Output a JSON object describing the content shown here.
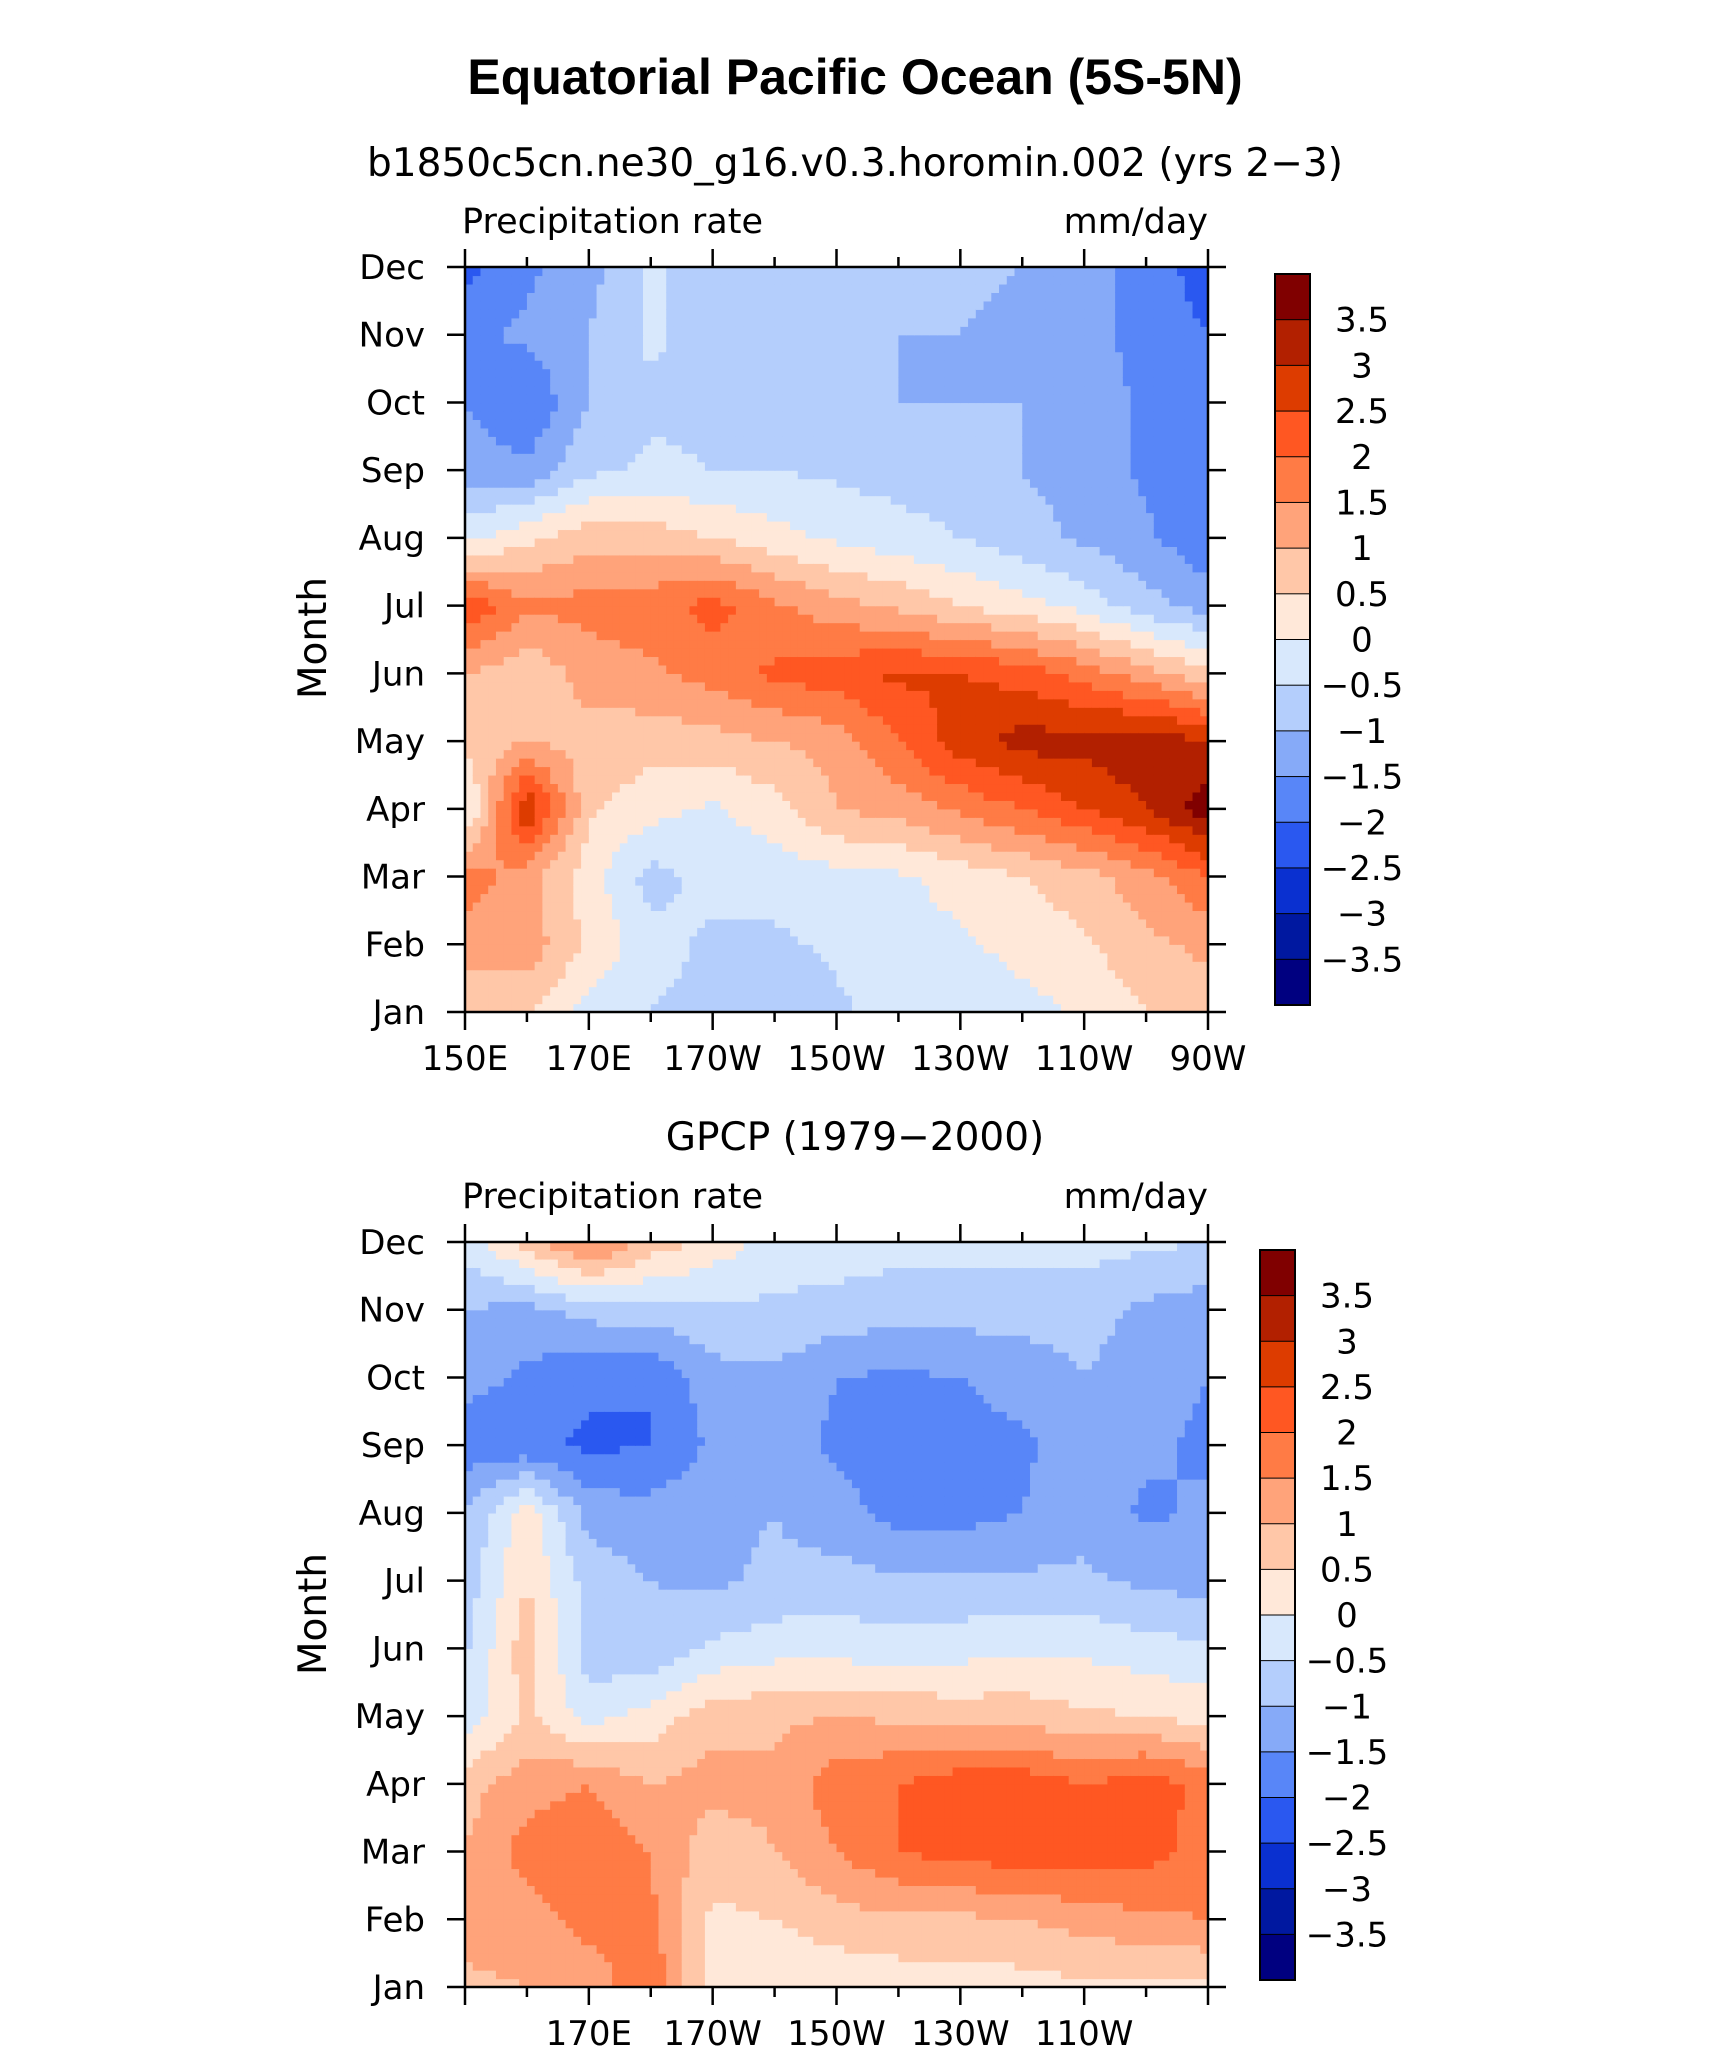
{
  "main_title": "Equatorial Pacific Ocean (5S-5N)",
  "colorbar": {
    "levels": [
      "3.5",
      "3",
      "2.5",
      "2",
      "1.5",
      "1",
      "0.5",
      "0",
      "−0.5",
      "−1",
      "−1.5",
      "−2",
      "−2.5",
      "−3",
      "−3.5"
    ],
    "colors": [
      "#800000",
      "#b22000",
      "#dd3c00",
      "#ff5722",
      "#ff7b45",
      "#ffa37a",
      "#ffc7a8",
      "#ffe8d9",
      "#d8e8fc",
      "#b4cefc",
      "#86aaf8",
      "#5886f8",
      "#2a58f0",
      "#0a30d0",
      "#0018a0",
      "#000080"
    ]
  },
  "chart_data": [
    {
      "type": "heatmap",
      "title": "b1850c5cn.ne30_g16.v0.3.horomin.002 (yrs 2−3)",
      "left_string": "Precipitation rate",
      "right_string": "mm/day",
      "ylabel": "Month",
      "xticklabels": [
        "150E",
        "170E",
        "170W",
        "150W",
        "130W",
        "110W",
        "90W"
      ],
      "yticklabels": [
        "Jan",
        "Feb",
        "Mar",
        "Apr",
        "May",
        "Jun",
        "Jul",
        "Aug",
        "Sep",
        "Oct",
        "Nov",
        "Dec"
      ],
      "xlim": [
        150,
        270
      ],
      "units": "mm/day",
      "x": [
        150,
        160,
        170,
        180,
        190,
        200,
        210,
        220,
        230,
        240,
        250,
        260,
        270
      ],
      "values": [
        [
          0.6,
          0.6,
          -0.2,
          -0.5,
          -0.7,
          -0.9,
          -0.6,
          -0.3,
          -0.5,
          -0.2,
          0.1,
          0.5,
          0.8
        ],
        [
          1.2,
          1.3,
          0.4,
          -0.3,
          -0.6,
          -0.6,
          -0.4,
          -0.2,
          -0.1,
          0.2,
          0.4,
          0.9,
          1.1
        ],
        [
          1.8,
          1.2,
          0.2,
          -0.7,
          -0.3,
          -0.3,
          -0.2,
          -0.1,
          0.2,
          0.5,
          0.8,
          1.3,
          2.0
        ],
        [
          -0.2,
          3.0,
          0.6,
          0.2,
          -0.1,
          0.3,
          1.0,
          1.2,
          1.6,
          2.0,
          2.5,
          3.0,
          3.8
        ],
        [
          0.6,
          1.0,
          0.8,
          0.7,
          0.8,
          1.0,
          1.2,
          2.0,
          2.8,
          3.2,
          3.2,
          3.4,
          3.0
        ],
        [
          1.0,
          0.6,
          1.2,
          1.4,
          1.7,
          2.1,
          2.3,
          2.6,
          2.5,
          2.3,
          1.8,
          1.2,
          0.6
        ],
        [
          2.5,
          1.6,
          1.7,
          1.8,
          2.2,
          1.6,
          1.2,
          0.9,
          0.5,
          0.2,
          -0.2,
          -0.8,
          -1.2
        ],
        [
          -0.2,
          0.4,
          0.8,
          0.8,
          0.5,
          0.2,
          -0.1,
          -0.3,
          -0.5,
          -0.8,
          -1.1,
          -1.4,
          -1.9
        ],
        [
          -1.2,
          -1.4,
          -0.6,
          -0.4,
          -0.5,
          -0.5,
          -0.6,
          -0.7,
          -0.8,
          -1.0,
          -1.2,
          -1.6,
          -1.8
        ],
        [
          -1.5,
          -2.0,
          -1.0,
          -0.6,
          -0.6,
          -0.8,
          -0.9,
          -1.0,
          -1.0,
          -1.0,
          -1.2,
          -1.6,
          -2.0
        ],
        [
          -1.6,
          -1.4,
          -1.0,
          -0.4,
          -0.8,
          -0.9,
          -1.0,
          -1.0,
          -1.0,
          -1.1,
          -1.3,
          -1.7,
          -2.0
        ],
        [
          -2.2,
          -1.6,
          -1.2,
          -0.4,
          -0.8,
          -0.9,
          -0.9,
          -0.9,
          -0.9,
          -1.0,
          -1.2,
          -1.8,
          -2.2
        ]
      ]
    },
    {
      "type": "heatmap",
      "title": "GPCP (1979−2000)",
      "left_string": "Precipitation rate",
      "right_string": "mm/day",
      "ylabel": "Month",
      "xticklabels": [
        "170E",
        "170W",
        "150W",
        "130W",
        "110W"
      ],
      "yticklabels": [
        "Jan",
        "Feb",
        "Mar",
        "Apr",
        "May",
        "Jun",
        "Jul",
        "Aug",
        "Sep",
        "Oct",
        "Nov",
        "Dec"
      ],
      "xlim": [
        150,
        270
      ],
      "units": "mm/day",
      "x": [
        150,
        160,
        170,
        180,
        190,
        200,
        210,
        220,
        230,
        240,
        250,
        260,
        270
      ],
      "values": [
        [
          0.9,
          1.0,
          1.2,
          1.9,
          0.3,
          0.0,
          0.1,
          0.2,
          0.2,
          0.3,
          0.4,
          0.3,
          0.4
        ],
        [
          1.2,
          1.3,
          1.7,
          1.6,
          0.4,
          0.5,
          0.8,
          0.9,
          0.9,
          1.0,
          1.2,
          1.4,
          1.5
        ],
        [
          1.0,
          1.7,
          1.9,
          1.5,
          0.7,
          1.0,
          1.5,
          2.0,
          2.2,
          2.3,
          2.3,
          2.2,
          1.8
        ],
        [
          0.8,
          1.3,
          1.5,
          1.0,
          1.2,
          1.1,
          1.8,
          2.0,
          2.3,
          2.3,
          2.0,
          2.3,
          1.8
        ],
        [
          -0.3,
          0.6,
          -0.2,
          0.2,
          0.8,
          0.9,
          1.0,
          0.9,
          0.8,
          0.8,
          0.6,
          0.5,
          0.3
        ],
        [
          -0.6,
          0.8,
          -0.8,
          -0.9,
          -0.4,
          -0.2,
          -0.2,
          -0.3,
          -0.2,
          -0.1,
          -0.1,
          -0.3,
          -0.4
        ],
        [
          -0.8,
          0.5,
          -0.7,
          -1.0,
          -1.1,
          -0.9,
          -0.8,
          -0.9,
          -0.9,
          -0.9,
          -0.9,
          -1.1,
          -1.2
        ],
        [
          -1.0,
          0.3,
          -1.2,
          -1.3,
          -1.1,
          -1.0,
          -1.3,
          -1.7,
          -1.7,
          -1.5,
          -1.2,
          -1.6,
          -1.4
        ],
        [
          -1.8,
          -1.9,
          -2.1,
          -2.0,
          -1.4,
          -1.3,
          -1.6,
          -1.7,
          -1.7,
          -1.6,
          -1.2,
          -1.4,
          -1.6
        ],
        [
          -1.3,
          -1.6,
          -1.9,
          -2.0,
          -1.2,
          -1.1,
          -1.5,
          -1.6,
          -1.5,
          -1.3,
          -1.0,
          -1.3,
          -1.5
        ],
        [
          -1.0,
          -1.2,
          -0.8,
          -0.7,
          -0.6,
          -0.6,
          -0.7,
          -0.8,
          -0.8,
          -0.8,
          -0.8,
          -1.1,
          -1.3
        ],
        [
          -0.3,
          0.7,
          1.7,
          0.8,
          0.3,
          -0.2,
          -0.2,
          -0.3,
          -0.3,
          -0.3,
          -0.3,
          -0.4,
          -0.5
        ]
      ]
    }
  ]
}
